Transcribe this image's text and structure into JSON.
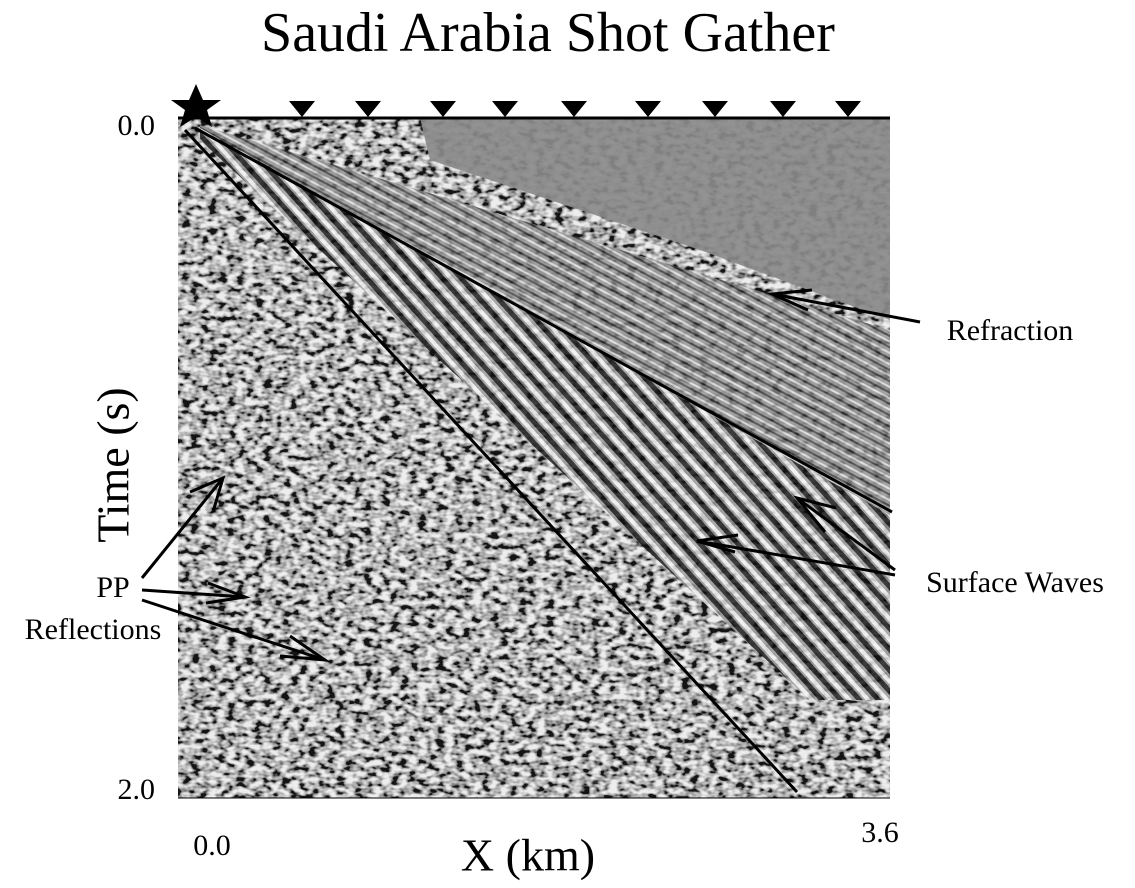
{
  "title": "Saudi Arabia Shot Gather",
  "y_axis": {
    "label": "Time (s)",
    "tick_labels": [
      "0.0",
      "2.0"
    ]
  },
  "x_axis": {
    "label": "X (km)",
    "tick_labels": [
      "0.0",
      "3.6"
    ]
  },
  "annotations": {
    "refraction": "Refraction",
    "surface_waves": "Surface Waves",
    "pp_reflections": [
      "PP",
      "Reflections"
    ]
  }
}
